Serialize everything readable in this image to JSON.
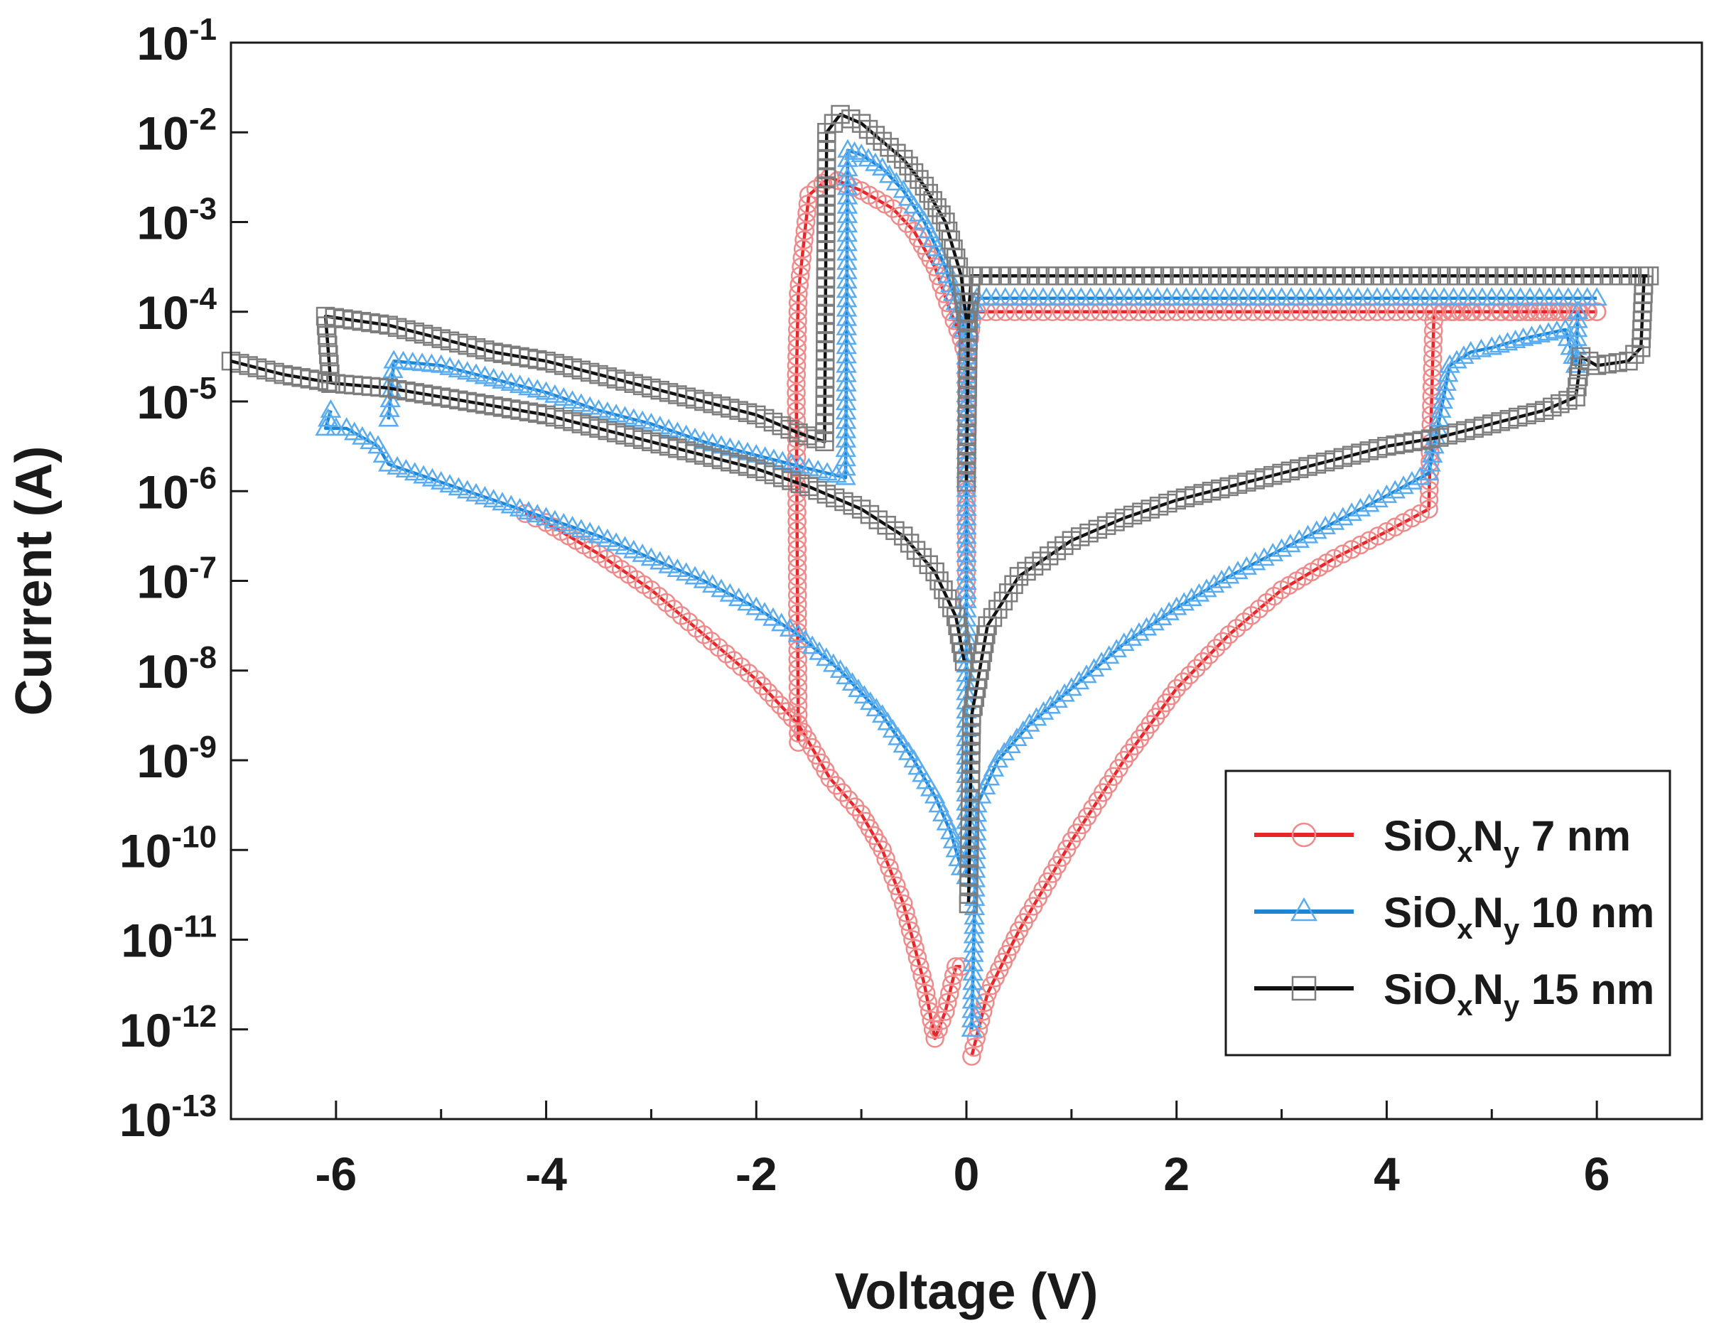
{
  "chart_data": {
    "type": "scatter",
    "title": "",
    "xlabel": "Voltage  (V)",
    "ylabel": "Current (A)",
    "xscale": "linear",
    "yscale": "log",
    "xlim": [
      -7,
      7
    ],
    "ylim_exponent": [
      -13,
      -1
    ],
    "x_ticks": [
      -6,
      -4,
      -2,
      0,
      2,
      4,
      6
    ],
    "x_tick_labels": [
      "-6",
      "-4",
      "-2",
      "0",
      "2",
      "4",
      "6"
    ],
    "y_ticks_exponent": [
      -1,
      -2,
      -3,
      -4,
      -5,
      -6,
      -7,
      -8,
      -9,
      -10,
      -11,
      -12,
      -13
    ],
    "y_tick_base": "10",
    "y_tick_exponent_labels": [
      "-1",
      "-2",
      "-3",
      "-4",
      "-5",
      "-6",
      "-7",
      "-8",
      "-9",
      "-10",
      "-11",
      "-12",
      "-13"
    ],
    "legend_position": "bottom-right",
    "series": [
      {
        "name": "SiOxNy 7 nm",
        "legend_base": "SiO",
        "legend_sub1": "x",
        "legend_mid": "N",
        "legend_sub2": "y",
        "legend_tail": " 7 nm",
        "color": "#e8262a",
        "marker_color": "#f08a8a",
        "marker": "circle",
        "branches": [
          [
            [
              0.05,
              -12.3
            ],
            [
              0.2,
              -11.6
            ],
            [
              0.5,
              -10.9
            ],
            [
              1.0,
              -9.9
            ],
            [
              1.5,
              -9.0
            ],
            [
              2.0,
              -8.2
            ],
            [
              2.5,
              -7.6
            ],
            [
              3.0,
              -7.1
            ],
            [
              3.5,
              -6.75
            ],
            [
              4.0,
              -6.45
            ],
            [
              4.4,
              -6.2
            ],
            [
              4.45,
              -4.0
            ],
            [
              4.7,
              -4.0
            ],
            [
              5.0,
              -4.0
            ],
            [
              5.5,
              -4.0
            ],
            [
              6.0,
              -4.0
            ]
          ],
          [
            [
              6.0,
              -4.0
            ],
            [
              5.0,
              -4.0
            ],
            [
              4.0,
              -4.0
            ],
            [
              3.0,
              -4.0
            ],
            [
              2.0,
              -4.0
            ],
            [
              1.0,
              -4.0
            ],
            [
              0.1,
              -4.0
            ],
            [
              0.05,
              -4.1
            ],
            [
              0.0,
              -4.6
            ],
            [
              0.0,
              -5.5
            ],
            [
              0.0,
              -7.2
            ]
          ],
          [
            [
              -0.05,
              -11.3
            ],
            [
              -0.1,
              -11.3
            ],
            [
              -0.2,
              -11.8
            ],
            [
              -0.3,
              -12.1
            ],
            [
              -0.4,
              -11.5
            ],
            [
              -0.6,
              -10.6
            ],
            [
              -0.8,
              -10.0
            ],
            [
              -1.0,
              -9.6
            ],
            [
              -1.3,
              -9.2
            ],
            [
              -1.6,
              -8.6
            ],
            [
              -2.0,
              -8.1
            ],
            [
              -2.5,
              -7.6
            ],
            [
              -3.0,
              -7.1
            ],
            [
              -3.5,
              -6.7
            ],
            [
              -4.0,
              -6.35
            ],
            [
              -4.2,
              -6.25
            ]
          ],
          [
            [
              -1.6,
              -8.8
            ],
            [
              -1.62,
              -4.8
            ],
            [
              -1.6,
              -3.8
            ],
            [
              -1.5,
              -2.7
            ],
            [
              -1.3,
              -2.5
            ],
            [
              -1.0,
              -2.65
            ],
            [
              -0.7,
              -2.85
            ],
            [
              -0.5,
              -3.1
            ],
            [
              -0.3,
              -3.5
            ],
            [
              -0.15,
              -4.0
            ],
            [
              -0.05,
              -4.3
            ],
            [
              0.0,
              -4.5
            ]
          ]
        ]
      },
      {
        "name": "SiOxNy 10 nm",
        "legend_base": "SiO",
        "legend_sub1": "x",
        "legend_mid": "N",
        "legend_sub2": "y",
        "legend_tail": " 10 nm",
        "color": "#1b86d6",
        "marker_color": "#5aacf0",
        "marker": "triangle",
        "branches": [
          [
            [
              0.05,
              -12.0
            ],
            [
              0.1,
              -9.5
            ],
            [
              0.3,
              -9.0
            ],
            [
              0.6,
              -8.6
            ],
            [
              1.0,
              -8.2
            ],
            [
              1.5,
              -7.7
            ],
            [
              2.0,
              -7.3
            ],
            [
              2.5,
              -6.95
            ],
            [
              3.0,
              -6.65
            ],
            [
              3.5,
              -6.35
            ],
            [
              4.0,
              -6.05
            ],
            [
              4.4,
              -5.8
            ],
            [
              4.5,
              -5.2
            ],
            [
              4.6,
              -4.6
            ],
            [
              4.8,
              -4.45
            ],
            [
              5.0,
              -4.4
            ],
            [
              5.3,
              -4.3
            ],
            [
              5.7,
              -4.2
            ],
            [
              5.8,
              -4.6
            ],
            [
              5.82,
              -4.0
            ]
          ],
          [
            [
              6.0,
              -3.85
            ],
            [
              5.0,
              -3.85
            ],
            [
              4.0,
              -3.85
            ],
            [
              3.0,
              -3.85
            ],
            [
              2.0,
              -3.85
            ],
            [
              1.0,
              -3.85
            ],
            [
              0.1,
              -3.85
            ],
            [
              0.05,
              -4.0
            ],
            [
              0.0,
              -4.4
            ],
            [
              0.0,
              -6.3
            ],
            [
              0.0,
              -10.3
            ]
          ],
          [
            [
              -0.05,
              -10.2
            ],
            [
              -0.15,
              -9.8
            ],
            [
              -0.3,
              -9.4
            ],
            [
              -0.5,
              -9.0
            ],
            [
              -0.8,
              -8.5
            ],
            [
              -1.2,
              -8.0
            ],
            [
              -1.6,
              -7.6
            ],
            [
              -2.0,
              -7.3
            ],
            [
              -2.5,
              -7.0
            ],
            [
              -3.0,
              -6.75
            ],
            [
              -3.5,
              -6.5
            ],
            [
              -4.0,
              -6.3
            ],
            [
              -4.5,
              -6.1
            ],
            [
              -5.0,
              -5.9
            ],
            [
              -5.5,
              -5.7
            ],
            [
              -5.6,
              -5.5
            ],
            [
              -5.9,
              -5.3
            ],
            [
              -6.1,
              -5.3
            ],
            [
              -6.05,
              -5.1
            ]
          ],
          [
            [
              -5.5,
              -5.2
            ],
            [
              -5.45,
              -4.55
            ],
            [
              -5.0,
              -4.6
            ],
            [
              -4.5,
              -4.75
            ],
            [
              -4.0,
              -4.9
            ],
            [
              -3.5,
              -5.1
            ],
            [
              -3.0,
              -5.25
            ],
            [
              -2.5,
              -5.45
            ],
            [
              -2.0,
              -5.6
            ],
            [
              -1.5,
              -5.75
            ],
            [
              -1.15,
              -5.85
            ],
            [
              -1.13,
              -2.2
            ],
            [
              -1.0,
              -2.25
            ],
            [
              -0.8,
              -2.4
            ],
            [
              -0.6,
              -2.65
            ],
            [
              -0.4,
              -3.0
            ],
            [
              -0.2,
              -3.5
            ],
            [
              -0.1,
              -3.9
            ],
            [
              0.0,
              -4.3
            ]
          ]
        ]
      },
      {
        "name": "SiOxNy 15 nm",
        "legend_base": "SiO",
        "legend_sub1": "x",
        "legend_mid": "N",
        "legend_sub2": "y",
        "legend_tail": " 15 nm",
        "color": "#111111",
        "marker_color": "#7d7d7d",
        "marker": "square",
        "branches": [
          [
            [
              0.02,
              -10.6
            ],
            [
              0.05,
              -8.5
            ],
            [
              0.2,
              -7.5
            ],
            [
              0.5,
              -6.95
            ],
            [
              1.0,
              -6.55
            ],
            [
              1.5,
              -6.3
            ],
            [
              2.0,
              -6.1
            ],
            [
              2.5,
              -5.95
            ],
            [
              3.0,
              -5.8
            ],
            [
              3.5,
              -5.65
            ],
            [
              4.0,
              -5.5
            ],
            [
              4.5,
              -5.4
            ],
            [
              5.0,
              -5.25
            ],
            [
              5.5,
              -5.1
            ],
            [
              5.8,
              -4.95
            ],
            [
              5.85,
              -4.5
            ],
            [
              6.0,
              -4.6
            ],
            [
              6.3,
              -4.55
            ],
            [
              6.42,
              -4.4
            ],
            [
              6.45,
              -3.6
            ]
          ],
          [
            [
              6.5,
              -3.6
            ],
            [
              5.5,
              -3.6
            ],
            [
              4.5,
              -3.6
            ],
            [
              3.5,
              -3.6
            ],
            [
              2.5,
              -3.6
            ],
            [
              1.5,
              -3.6
            ],
            [
              0.5,
              -3.6
            ],
            [
              0.05,
              -3.6
            ],
            [
              0.02,
              -4.0
            ],
            [
              0.0,
              -5.9
            ]
          ],
          [
            [
              -0.02,
              -7.9
            ],
            [
              -0.1,
              -7.4
            ],
            [
              -0.3,
              -6.9
            ],
            [
              -0.6,
              -6.5
            ],
            [
              -1.0,
              -6.2
            ],
            [
              -1.5,
              -5.95
            ],
            [
              -2.0,
              -5.75
            ],
            [
              -2.5,
              -5.6
            ],
            [
              -3.0,
              -5.45
            ],
            [
              -3.5,
              -5.3
            ],
            [
              -4.0,
              -5.15
            ],
            [
              -4.5,
              -5.05
            ],
            [
              -5.0,
              -4.95
            ],
            [
              -5.5,
              -4.85
            ],
            [
              -6.0,
              -4.8
            ],
            [
              -6.5,
              -4.7
            ],
            [
              -7.0,
              -4.55
            ]
          ],
          [
            [
              -6.05,
              -4.8
            ],
            [
              -6.1,
              -4.05
            ],
            [
              -5.5,
              -4.15
            ],
            [
              -5.0,
              -4.3
            ],
            [
              -4.5,
              -4.45
            ],
            [
              -4.0,
              -4.55
            ],
            [
              -3.5,
              -4.7
            ],
            [
              -3.0,
              -4.85
            ],
            [
              -2.5,
              -5.0
            ],
            [
              -2.0,
              -5.15
            ],
            [
              -1.6,
              -5.35
            ],
            [
              -1.35,
              -5.45
            ],
            [
              -1.33,
              -2.0
            ],
            [
              -1.2,
              -1.8
            ],
            [
              -1.0,
              -1.9
            ],
            [
              -0.8,
              -2.1
            ],
            [
              -0.6,
              -2.3
            ],
            [
              -0.4,
              -2.6
            ],
            [
              -0.2,
              -3.0
            ],
            [
              -0.05,
              -3.6
            ],
            [
              0.0,
              -4.1
            ]
          ]
        ]
      }
    ]
  }
}
